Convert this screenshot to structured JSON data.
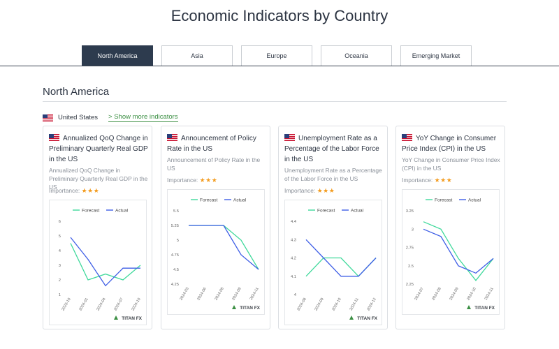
{
  "page": {
    "title": "Economic Indicators by Country"
  },
  "tabs": [
    {
      "label": "North America",
      "active": true
    },
    {
      "label": "Asia",
      "active": false
    },
    {
      "label": "Europe",
      "active": false
    },
    {
      "label": "Oceania",
      "active": false
    },
    {
      "label": "Emerging Market",
      "active": false
    }
  ],
  "section": {
    "title": "North America",
    "country": "United States",
    "more_link": "> Show more indicators"
  },
  "colors": {
    "forecast": "#3fd99b",
    "actual": "#3e5ee6",
    "active_tab": "#2d3b4e",
    "stars": "#f39c1f",
    "link": "#3b8f43"
  },
  "brand": "TITAN FX",
  "cards": [
    {
      "title": "Annualized QoQ Change in Preliminary Quarterly Real GDP in the US",
      "subtitle": "Annualized QoQ Change in Preliminary Quarterly Real GDP in the US",
      "importance_label": "Importance:",
      "stars": "★★★",
      "chart_data": {
        "type": "line",
        "x": [
          "2023-10",
          "2024-01",
          "2024-04",
          "2024-07",
          "2024-10"
        ],
        "ylim": [
          1,
          6
        ],
        "yticks": [
          "1",
          "2",
          "3",
          "4",
          "5",
          "6"
        ],
        "legend": "top",
        "series": [
          {
            "name": "Forecast",
            "values": [
              4.5,
              2.0,
              2.4,
              2.0,
              3.0
            ]
          },
          {
            "name": "Actual",
            "values": [
              4.9,
              3.4,
              1.6,
              2.8,
              2.8
            ]
          }
        ]
      }
    },
    {
      "title": "Announcement of Policy Rate in the US",
      "subtitle": "Announcement of Policy Rate in the US",
      "importance_label": "Importance:",
      "stars": "★★★",
      "chart_data": {
        "type": "line",
        "x": [
          "2024-03",
          "2024-06",
          "2024-08",
          "2024-09",
          "2024-11"
        ],
        "ylim": [
          4.25,
          5.5
        ],
        "yticks": [
          "4.25",
          "4.5",
          "4.75",
          "5",
          "5.25",
          "5.5"
        ],
        "legend": "top",
        "series": [
          {
            "name": "Forecast",
            "values": [
              5.25,
              5.25,
              5.25,
              5.0,
              4.5
            ]
          },
          {
            "name": "Actual",
            "values": [
              5.25,
              5.25,
              5.25,
              4.75,
              4.5
            ]
          }
        ]
      }
    },
    {
      "title": "Unemployment Rate as a Percentage of the Labor Force in the US",
      "subtitle": "Unemployment Rate as a Percentage of the Labor Force in the US",
      "importance_label": "Importance:",
      "stars": "★★★",
      "chart_data": {
        "type": "line",
        "x": [
          "2024-08",
          "2024-09",
          "2024-10",
          "2024-11",
          "2024-12"
        ],
        "ylim": [
          4,
          4.4
        ],
        "yticks": [
          "4",
          "4.1",
          "4.2",
          "4.3",
          "4.4"
        ],
        "legend": "top",
        "series": [
          {
            "name": "Forecast",
            "values": [
              4.1,
              4.2,
              4.2,
              4.1,
              4.2
            ]
          },
          {
            "name": "Actual",
            "values": [
              4.3,
              4.2,
              4.1,
              4.1,
              4.2
            ]
          }
        ]
      }
    },
    {
      "title": "YoY Change in Consumer Price Index (CPI) in the US",
      "subtitle": "YoY Change in Consumer Price Index (CPI) in the US",
      "importance_label": "Importance:",
      "stars": "★★★",
      "chart_data": {
        "type": "line",
        "x": [
          "2024-07",
          "2024-08",
          "2024-09",
          "2024-10",
          "2024-11"
        ],
        "ylim": [
          2.25,
          3.25
        ],
        "yticks": [
          "2.25",
          "2.5",
          "2.75",
          "3",
          "3.25"
        ],
        "legend": "top",
        "series": [
          {
            "name": "Forecast",
            "values": [
              3.1,
              3.0,
              2.6,
              2.3,
              2.6
            ]
          },
          {
            "name": "Actual",
            "values": [
              3.0,
              2.9,
              2.5,
              2.4,
              2.6
            ]
          }
        ]
      }
    }
  ]
}
